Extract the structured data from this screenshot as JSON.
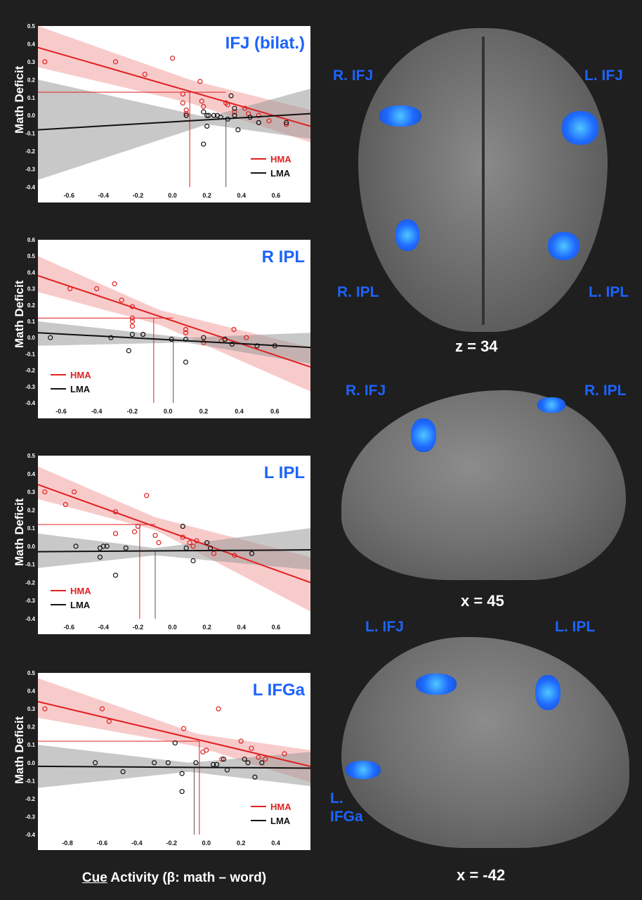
{
  "colors": {
    "hma": "#e02020",
    "hma_band": "#f4a9a9",
    "lma": "#111111",
    "lma_band": "#9a9a9a",
    "region_title": "#1d63ff"
  },
  "x_axis_label": {
    "underlined": "Cue",
    "rest": " Activity (β: math – word)"
  },
  "chart_data": [
    {
      "type": "scatter",
      "title": "IFJ (bilat.)",
      "ylabel": "Math Deficit",
      "xlim": [
        -0.78,
        0.8
      ],
      "ylim": [
        -0.4,
        0.5
      ],
      "xticks": [
        -0.6,
        -0.4,
        -0.2,
        0.0,
        0.2,
        0.4,
        0.6
      ],
      "xtick_labels": [
        "-0.6",
        "-0.4",
        "-0.2",
        "0.0",
        "0.2",
        "0.4",
        "0.6"
      ],
      "yticks": [
        -0.4,
        -0.3,
        -0.2,
        -0.1,
        0.0,
        0.1,
        0.2,
        0.3,
        0.4,
        0.5
      ],
      "ytick_labels": [
        "-0.4",
        "-0.3",
        "-0.2",
        "-0.1",
        "0.0",
        "0.1",
        "0.2",
        "0.3",
        "0.4",
        "0.5"
      ],
      "legend": {
        "position": "bottom-right",
        "entries": [
          "HMA",
          "LMA"
        ]
      },
      "mean_deficit": 0.13,
      "hma_mean_x": 0.1,
      "lma_mean_x": 0.31,
      "series": [
        {
          "name": "HMA",
          "fit": [
            [
              -0.78,
              0.38
            ],
            [
              0.8,
              -0.06
            ]
          ],
          "band_upper": [
            [
              -0.78,
              0.5
            ],
            [
              0.1,
              0.2
            ],
            [
              0.8,
              0.03
            ]
          ],
          "band_lower": [
            [
              -0.78,
              0.27
            ],
            [
              0.1,
              0.07
            ],
            [
              0.8,
              -0.15
            ]
          ],
          "points": [
            [
              -0.74,
              0.3
            ],
            [
              -0.33,
              0.3
            ],
            [
              -0.16,
              0.23
            ],
            [
              0.0,
              0.32
            ],
            [
              0.06,
              0.12
            ],
            [
              0.06,
              0.07
            ],
            [
              0.08,
              0.03
            ],
            [
              0.08,
              0.01
            ],
            [
              0.16,
              0.19
            ],
            [
              0.17,
              0.08
            ],
            [
              0.18,
              0.05
            ],
            [
              0.31,
              0.07
            ],
            [
              0.32,
              0.06
            ],
            [
              0.36,
              0.02
            ],
            [
              0.42,
              0.04
            ],
            [
              0.44,
              0.01
            ],
            [
              0.5,
              0.0
            ],
            [
              0.56,
              -0.03
            ],
            [
              0.66,
              -0.05
            ]
          ]
        },
        {
          "name": "LMA",
          "fit": [
            [
              -0.78,
              -0.08
            ],
            [
              0.8,
              0.01
            ]
          ],
          "band_upper": [
            [
              -0.78,
              0.2
            ],
            [
              0.2,
              -0.01
            ],
            [
              0.8,
              0.15
            ]
          ],
          "band_lower": [
            [
              -0.78,
              -0.36
            ],
            [
              0.2,
              -0.05
            ],
            [
              0.8,
              -0.13
            ]
          ],
          "points": [
            [
              0.08,
              0.0
            ],
            [
              0.18,
              0.02
            ],
            [
              0.2,
              0.0
            ],
            [
              0.21,
              0.0
            ],
            [
              0.24,
              0.0
            ],
            [
              0.26,
              0.0
            ],
            [
              0.28,
              -0.01
            ],
            [
              0.2,
              -0.06
            ],
            [
              0.18,
              -0.16
            ],
            [
              0.32,
              -0.02
            ],
            [
              0.34,
              0.11
            ],
            [
              0.36,
              0.04
            ],
            [
              0.38,
              -0.08
            ],
            [
              0.36,
              0.0
            ],
            [
              0.45,
              -0.01
            ],
            [
              0.5,
              -0.04
            ],
            [
              0.66,
              -0.04
            ]
          ]
        }
      ]
    },
    {
      "type": "scatter",
      "title": "R IPL",
      "ylabel": "Math Deficit",
      "xlim": [
        -0.73,
        0.8
      ],
      "ylim": [
        -0.4,
        0.6
      ],
      "xticks": [
        -0.6,
        -0.4,
        -0.2,
        0.0,
        0.2,
        0.4,
        0.6
      ],
      "xtick_labels": [
        "-0.6",
        "-0.4",
        "-0.2",
        "0.0",
        "0.2",
        "0.4",
        "0.6"
      ],
      "yticks": [
        -0.4,
        -0.3,
        -0.2,
        -0.1,
        0.0,
        0.1,
        0.2,
        0.3,
        0.4,
        0.5,
        0.6
      ],
      "ytick_labels": [
        "-0.4",
        "-0.3",
        "-0.2",
        "-0.1",
        "0.0",
        "0.1",
        "0.2",
        "0.3",
        "0.4",
        "0.5",
        "0.6"
      ],
      "legend": {
        "position": "bottom-left",
        "entries": [
          "HMA",
          "LMA"
        ]
      },
      "mean_deficit": 0.12,
      "hma_mean_x": -0.08,
      "lma_mean_x": 0.03,
      "series": [
        {
          "name": "HMA",
          "fit": [
            [
              -0.73,
              0.38
            ],
            [
              0.8,
              -0.18
            ]
          ],
          "band_upper": [
            [
              -0.73,
              0.5
            ],
            [
              -0.05,
              0.17
            ],
            [
              0.8,
              -0.06
            ]
          ],
          "band_lower": [
            [
              -0.73,
              0.28
            ],
            [
              -0.05,
              0.08
            ],
            [
              0.8,
              -0.33
            ]
          ],
          "points": [
            [
              -0.55,
              0.3
            ],
            [
              -0.4,
              0.3
            ],
            [
              -0.3,
              0.33
            ],
            [
              -0.26,
              0.23
            ],
            [
              -0.2,
              0.19
            ],
            [
              -0.2,
              0.12
            ],
            [
              -0.2,
              0.1
            ],
            [
              -0.2,
              0.07
            ],
            [
              -0.14,
              0.02
            ],
            [
              0.1,
              0.05
            ],
            [
              0.1,
              0.03
            ],
            [
              0.2,
              -0.03
            ],
            [
              0.3,
              -0.02
            ],
            [
              0.37,
              0.05
            ],
            [
              0.44,
              0.0
            ]
          ]
        },
        {
          "name": "LMA",
          "fit": [
            [
              -0.73,
              0.03
            ],
            [
              0.8,
              -0.06
            ]
          ],
          "band_upper": [
            [
              -0.73,
              0.1
            ],
            [
              0.1,
              0.0
            ],
            [
              0.8,
              0.03
            ]
          ],
          "band_lower": [
            [
              -0.73,
              -0.05
            ],
            [
              0.1,
              -0.03
            ],
            [
              0.8,
              -0.16
            ]
          ],
          "points": [
            [
              -0.66,
              0.0
            ],
            [
              -0.32,
              0.0
            ],
            [
              -0.22,
              -0.08
            ],
            [
              -0.2,
              0.02
            ],
            [
              -0.14,
              0.02
            ],
            [
              0.02,
              -0.01
            ],
            [
              0.1,
              -0.15
            ],
            [
              0.1,
              -0.01
            ],
            [
              0.2,
              0.0
            ],
            [
              0.32,
              -0.01
            ],
            [
              0.36,
              -0.04
            ],
            [
              0.5,
              -0.05
            ],
            [
              0.6,
              -0.05
            ]
          ]
        }
      ]
    },
    {
      "type": "scatter",
      "title": "L IPL",
      "ylabel": "Math Deficit",
      "xlim": [
        -0.78,
        0.8
      ],
      "ylim": [
        -0.4,
        0.5
      ],
      "xticks": [
        -0.6,
        -0.4,
        -0.2,
        0.0,
        0.2,
        0.4,
        0.6
      ],
      "xtick_labels": [
        "-0.6",
        "-0.4",
        "-0.2",
        "0.0",
        "0.2",
        "0.4",
        "0.6"
      ],
      "yticks": [
        -0.4,
        -0.3,
        -0.2,
        -0.1,
        0.0,
        0.1,
        0.2,
        0.3,
        0.4,
        0.5
      ],
      "ytick_labels": [
        "-0.4",
        "-0.3",
        "-0.2",
        "-0.1",
        "0.0",
        "0.1",
        "0.2",
        "0.3",
        "0.4",
        "0.5"
      ],
      "legend": {
        "position": "bottom-left",
        "entries": [
          "HMA",
          "LMA"
        ]
      },
      "mean_deficit": 0.12,
      "hma_mean_x": -0.19,
      "lma_mean_x": -0.1,
      "series": [
        {
          "name": "HMA",
          "fit": [
            [
              -0.78,
              0.34
            ],
            [
              0.8,
              -0.2
            ]
          ],
          "band_upper": [
            [
              -0.78,
              0.44
            ],
            [
              -0.1,
              0.16
            ],
            [
              0.8,
              -0.06
            ]
          ],
          "band_lower": [
            [
              -0.78,
              0.26
            ],
            [
              -0.1,
              0.09
            ],
            [
              0.8,
              -0.36
            ]
          ],
          "points": [
            [
              -0.74,
              0.3
            ],
            [
              -0.57,
              0.3
            ],
            [
              -0.62,
              0.23
            ],
            [
              -0.33,
              0.19
            ],
            [
              -0.33,
              0.07
            ],
            [
              -0.22,
              0.08
            ],
            [
              -0.2,
              0.11
            ],
            [
              -0.15,
              0.28
            ],
            [
              -0.1,
              0.06
            ],
            [
              -0.08,
              0.02
            ],
            [
              0.06,
              0.05
            ],
            [
              0.1,
              0.02
            ],
            [
              0.12,
              0.0
            ],
            [
              0.14,
              0.03
            ],
            [
              0.24,
              -0.04
            ],
            [
              0.36,
              -0.05
            ]
          ]
        },
        {
          "name": "LMA",
          "fit": [
            [
              -0.78,
              -0.03
            ],
            [
              0.8,
              -0.02
            ]
          ],
          "band_upper": [
            [
              -0.78,
              0.07
            ],
            [
              -0.1,
              -0.01
            ],
            [
              0.8,
              0.1
            ]
          ],
          "band_lower": [
            [
              -0.78,
              -0.12
            ],
            [
              -0.1,
              -0.05
            ],
            [
              0.8,
              -0.13
            ]
          ],
          "points": [
            [
              -0.56,
              0.0
            ],
            [
              -0.42,
              -0.01
            ],
            [
              -0.4,
              0.0
            ],
            [
              -0.38,
              0.0
            ],
            [
              -0.42,
              -0.06
            ],
            [
              -0.33,
              -0.16
            ],
            [
              -0.27,
              -0.01
            ],
            [
              0.06,
              0.11
            ],
            [
              0.08,
              -0.01
            ],
            [
              0.12,
              -0.08
            ],
            [
              0.2,
              0.02
            ],
            [
              0.22,
              -0.01
            ],
            [
              0.46,
              -0.04
            ]
          ]
        }
      ]
    },
    {
      "type": "scatter",
      "title": "L IFGa",
      "ylabel": "Math Deficit",
      "xlim": [
        -0.97,
        0.6
      ],
      "ylim": [
        -0.4,
        0.5
      ],
      "xticks": [
        -0.8,
        -0.6,
        -0.4,
        -0.2,
        0.0,
        0.2,
        0.4
      ],
      "xtick_labels": [
        "-0.8",
        "-0.6",
        "-0.4",
        "-0.2",
        "0.0",
        "0.2",
        "0.4"
      ],
      "yticks": [
        -0.4,
        -0.3,
        -0.2,
        -0.1,
        0.0,
        0.1,
        0.2,
        0.3,
        0.4,
        0.5
      ],
      "ytick_labels": [
        "-0.4",
        "-0.3",
        "-0.2",
        "-0.1",
        "0.0",
        "0.1",
        "0.2",
        "0.3",
        "0.4",
        "0.5"
      ],
      "legend": {
        "position": "bottom-right",
        "entries": [
          "HMA",
          "LMA"
        ]
      },
      "mean_deficit": 0.12,
      "hma_mean_x": -0.04,
      "lma_mean_x": -0.07,
      "series": [
        {
          "name": "HMA",
          "fit": [
            [
              -0.97,
              0.34
            ],
            [
              0.6,
              -0.02
            ]
          ],
          "band_upper": [
            [
              -0.97,
              0.47
            ],
            [
              -0.05,
              0.16
            ],
            [
              0.6,
              0.07
            ]
          ],
          "band_lower": [
            [
              -0.97,
              0.25
            ],
            [
              -0.05,
              0.09
            ],
            [
              0.6,
              -0.11
            ]
          ],
          "points": [
            [
              -0.93,
              0.3
            ],
            [
              -0.6,
              0.3
            ],
            [
              -0.56,
              0.23
            ],
            [
              -0.13,
              0.19
            ],
            [
              -0.02,
              0.06
            ],
            [
              0.0,
              0.07
            ],
            [
              0.07,
              0.3
            ],
            [
              0.09,
              0.02
            ],
            [
              0.2,
              0.12
            ],
            [
              0.26,
              0.08
            ],
            [
              0.3,
              0.03
            ],
            [
              0.34,
              0.02
            ],
            [
              0.45,
              0.05
            ]
          ]
        },
        {
          "name": "LMA",
          "fit": [
            [
              -0.97,
              -0.02
            ],
            [
              0.6,
              -0.03
            ]
          ],
          "band_upper": [
            [
              -0.97,
              0.1
            ],
            [
              -0.1,
              0.0
            ],
            [
              0.6,
              0.06
            ]
          ],
          "band_lower": [
            [
              -0.97,
              -0.14
            ],
            [
              -0.1,
              -0.05
            ],
            [
              0.6,
              -0.13
            ]
          ],
          "points": [
            [
              -0.64,
              0.0
            ],
            [
              -0.48,
              -0.05
            ],
            [
              -0.3,
              0.0
            ],
            [
              -0.22,
              0.0
            ],
            [
              -0.18,
              0.11
            ],
            [
              -0.14,
              -0.06
            ],
            [
              -0.14,
              -0.16
            ],
            [
              -0.06,
              0.0
            ],
            [
              0.04,
              -0.01
            ],
            [
              0.06,
              -0.01
            ],
            [
              0.1,
              0.02
            ],
            [
              0.12,
              -0.04
            ],
            [
              0.22,
              0.02
            ],
            [
              0.24,
              0.0
            ],
            [
              0.28,
              -0.08
            ],
            [
              0.32,
              0.0
            ]
          ]
        }
      ]
    }
  ],
  "brain_panels": [
    {
      "coord": "z = 34",
      "labels": [
        "R. IFJ",
        "L. IFJ",
        "R. IPL",
        "L. IPL"
      ]
    },
    {
      "coord": "x = 45",
      "labels": [
        "R. IFJ",
        "R. IPL"
      ]
    },
    {
      "coord": "x = -42",
      "labels": [
        "L. IFJ",
        "L. IPL",
        "L.",
        "IFGa"
      ]
    }
  ]
}
